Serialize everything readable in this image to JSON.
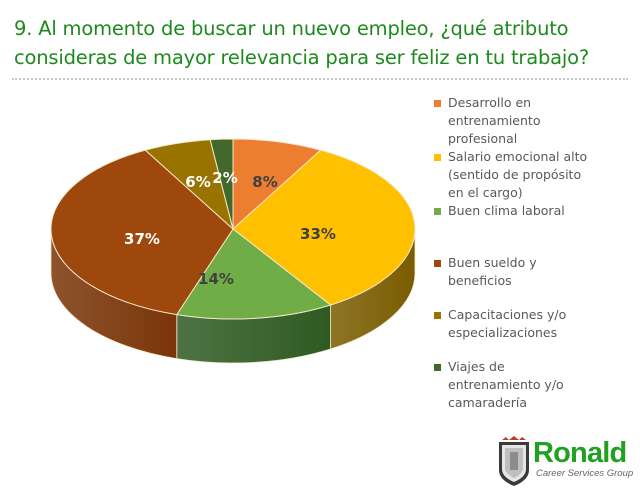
{
  "header": {
    "title_line1": "9.  Al momento de buscar un nuevo empleo, ¿qué atributo",
    "title_line2": "consideras de mayor relevancia para ser feliz en tu trabajo?"
  },
  "chart_data": {
    "type": "pie",
    "title": "9. Al momento de buscar un nuevo empleo, ¿qué atributo consideras de mayor relevancia para ser feliz en tu trabajo?",
    "style": "3d",
    "start_angle": "12 o'clock, clockwise",
    "legend_position": "right",
    "categories": [
      "Desarrollo en entrenamiento profesional",
      "Salario emocional alto (sentido de propósito en el cargo)",
      "Buen clima laboral",
      "Buen sueldo y beneficios",
      "Capacitaciones y/o especializaciones",
      "Viajes de entrenamiento y/o camaradería"
    ],
    "values": [
      8,
      33,
      14,
      37,
      6,
      2
    ],
    "labels": [
      "8%",
      "33%",
      "14%",
      "37%",
      "6%",
      "2%"
    ],
    "colors": [
      "#ED7D31",
      "#FFC000",
      "#70AD47",
      "#9E480E",
      "#997300",
      "#43682B"
    ],
    "side_colors": [
      "#b35a1f",
      "#7a5c00",
      "#2f5a22",
      "#7a3508",
      "#6e5300",
      "#2b4a1b"
    ],
    "label_colors": [
      "#404040",
      "#404040",
      "#404040",
      "#ffffff",
      "#ffffff",
      "#ffffff"
    ]
  },
  "legend": {
    "items": [
      {
        "lines": [
          "Desarrollo en",
          "entrenamiento",
          "profesional"
        ],
        "color": "#ED7D31"
      },
      {
        "lines": [
          "Salario emocional alto",
          "(sentido de propósito",
          "en el cargo)"
        ],
        "color": "#FFC000"
      },
      {
        "lines": [
          "Buen clima laboral"
        ],
        "color": "#70AD47"
      },
      {
        "lines": [
          "Buen sueldo y",
          "beneficios"
        ],
        "color": "#9E480E"
      },
      {
        "lines": [
          "Capacitaciones y/o",
          "especializaciones"
        ],
        "color": "#997300"
      },
      {
        "lines": [
          "Viajes de",
          "entrenamiento y/o",
          "camaradería"
        ],
        "color": "#43682B"
      }
    ]
  },
  "logo": {
    "name": "Ronald",
    "subtitle": "Career Services Group"
  }
}
